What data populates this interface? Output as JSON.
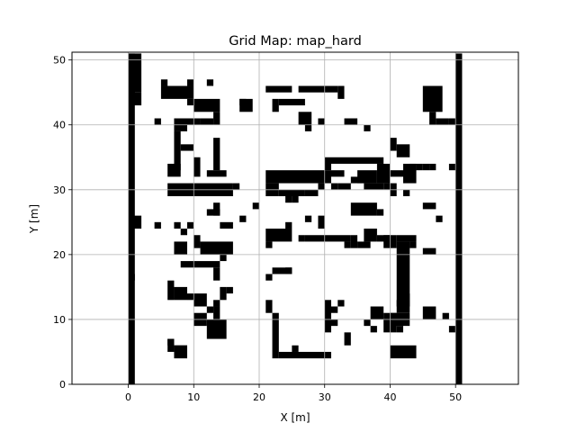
{
  "chart_data": {
    "type": "heatmap",
    "title": "Grid Map: map_hard",
    "xlabel": "X [m]",
    "ylabel": "Y [m]",
    "xlim": [
      -8.6,
      59.6
    ],
    "ylim": [
      0,
      51.2
    ],
    "xticks": [
      0,
      10,
      20,
      30,
      40,
      50
    ],
    "yticks": [
      0,
      10,
      20,
      30,
      40,
      50
    ],
    "grid": true,
    "cell_size": 1,
    "colors": {
      "occupied": "#000000",
      "free": "#ffffff",
      "grid": "#b0b0b0"
    },
    "occupied_cells": [
      [
        0,
        0,
        1,
        51
      ],
      [
        50,
        0,
        1,
        51
      ],
      [
        0,
        45,
        2,
        6
      ],
      [
        0,
        44,
        1,
        2
      ],
      [
        0,
        43,
        2,
        2
      ],
      [
        0,
        16,
        1,
        1
      ],
      [
        0,
        24,
        2,
        2
      ],
      [
        5,
        46,
        1,
        1
      ],
      [
        9,
        46,
        1,
        1
      ],
      [
        12,
        46,
        1,
        1
      ],
      [
        5,
        44,
        5,
        2
      ],
      [
        9,
        43,
        1,
        1
      ],
      [
        10,
        42,
        4,
        2
      ],
      [
        13,
        41,
        1,
        1
      ],
      [
        7,
        39,
        2,
        2
      ],
      [
        9,
        40,
        2,
        1
      ],
      [
        11,
        40,
        2,
        1
      ],
      [
        13,
        40,
        1,
        1
      ],
      [
        4,
        40,
        1,
        1
      ],
      [
        7,
        33,
        1,
        6
      ],
      [
        8,
        36,
        2,
        1
      ],
      [
        10,
        32,
        1,
        3
      ],
      [
        12,
        32,
        3,
        1
      ],
      [
        13,
        33,
        1,
        5
      ],
      [
        6,
        32,
        2,
        2
      ],
      [
        6,
        29,
        10,
        2
      ],
      [
        16,
        30,
        1,
        1
      ],
      [
        13,
        26,
        1,
        2
      ],
      [
        12,
        26,
        2,
        1
      ],
      [
        14,
        24,
        2,
        1
      ],
      [
        17,
        25,
        1,
        1
      ],
      [
        19,
        27,
        1,
        1
      ],
      [
        7,
        24,
        1,
        1
      ],
      [
        8,
        23,
        1,
        1
      ],
      [
        9,
        24,
        1,
        1
      ],
      [
        4,
        24,
        1,
        1
      ],
      [
        10,
        21,
        1,
        2
      ],
      [
        11,
        20,
        5,
        2
      ],
      [
        14,
        19,
        1,
        1
      ],
      [
        7,
        20,
        2,
        2
      ],
      [
        8,
        18,
        6,
        1
      ],
      [
        13,
        16,
        1,
        2
      ],
      [
        6,
        13,
        1,
        3
      ],
      [
        7,
        13,
        2,
        2
      ],
      [
        9,
        13,
        1,
        1
      ],
      [
        10,
        12,
        2,
        2
      ],
      [
        14,
        13,
        1,
        2
      ],
      [
        13,
        12,
        1,
        1
      ],
      [
        13,
        10,
        1,
        2
      ],
      [
        10,
        9,
        2,
        2
      ],
      [
        12,
        11,
        1,
        1
      ],
      [
        12,
        7,
        3,
        3
      ],
      [
        6,
        5,
        1,
        2
      ],
      [
        7,
        5,
        2,
        1
      ],
      [
        7,
        4,
        2,
        2
      ],
      [
        6,
        6,
        1,
        1
      ],
      [
        15,
        14,
        1,
        1
      ],
      [
        21,
        45,
        4,
        1
      ],
      [
        26,
        45,
        6,
        1
      ],
      [
        32,
        44,
        1,
        2
      ],
      [
        22,
        42,
        1,
        2
      ],
      [
        23,
        43,
        4,
        1
      ],
      [
        26,
        40,
        2,
        2
      ],
      [
        27,
        39,
        1,
        1
      ],
      [
        29,
        40,
        1,
        1
      ],
      [
        33,
        40,
        2,
        1
      ],
      [
        36,
        39,
        1,
        1
      ],
      [
        17,
        42,
        2,
        2
      ],
      [
        17,
        43,
        1,
        1
      ],
      [
        40,
        36,
        1,
        2
      ],
      [
        41,
        35,
        2,
        2
      ],
      [
        31,
        34,
        8,
        1
      ],
      [
        30,
        33,
        1,
        2
      ],
      [
        31,
        32,
        2,
        1
      ],
      [
        35,
        31,
        3,
        2
      ],
      [
        38,
        31,
        2,
        3
      ],
      [
        39,
        32,
        4,
        1
      ],
      [
        42,
        31,
        2,
        3
      ],
      [
        43,
        33,
        1,
        1
      ],
      [
        46,
        33,
        1,
        1
      ],
      [
        49,
        33,
        1,
        1
      ],
      [
        44,
        33,
        1,
        1
      ],
      [
        45,
        33,
        1,
        1
      ],
      [
        21,
        31,
        10,
        2
      ],
      [
        21,
        29,
        2,
        2
      ],
      [
        23,
        29,
        4,
        1
      ],
      [
        27,
        29,
        2,
        1
      ],
      [
        29,
        30,
        1,
        1
      ],
      [
        31,
        30,
        1,
        1
      ],
      [
        32,
        30,
        2,
        1
      ],
      [
        34,
        31,
        2,
        1
      ],
      [
        36,
        30,
        3,
        1
      ],
      [
        39,
        30,
        2,
        1
      ],
      [
        40,
        29,
        1,
        1
      ],
      [
        42,
        29,
        1,
        1
      ],
      [
        25,
        28,
        1,
        1
      ],
      [
        24,
        28,
        1,
        1
      ],
      [
        34,
        26,
        4,
        2
      ],
      [
        38,
        26,
        1,
        1
      ],
      [
        45,
        27,
        2,
        1
      ],
      [
        47,
        25,
        1,
        1
      ],
      [
        21,
        22,
        4,
        2
      ],
      [
        21,
        21,
        1,
        1
      ],
      [
        24,
        24,
        1,
        1
      ],
      [
        27,
        25,
        1,
        1
      ],
      [
        29,
        24,
        1,
        2
      ],
      [
        26,
        22,
        1,
        1
      ],
      [
        27,
        22,
        7,
        1
      ],
      [
        33,
        21,
        1,
        1
      ],
      [
        34,
        21,
        1,
        2
      ],
      [
        35,
        21,
        2,
        1
      ],
      [
        36,
        22,
        2,
        2
      ],
      [
        38,
        22,
        2,
        1
      ],
      [
        39,
        21,
        2,
        2
      ],
      [
        41,
        22,
        3,
        1
      ],
      [
        43,
        21,
        1,
        1
      ],
      [
        22,
        17,
        3,
        1
      ],
      [
        24,
        17,
        1,
        1
      ],
      [
        21,
        16,
        1,
        1
      ],
      [
        21,
        11,
        1,
        2
      ],
      [
        22,
        4,
        1,
        7
      ],
      [
        23,
        4,
        8,
        1
      ],
      [
        25,
        5,
        1,
        1
      ],
      [
        30,
        8,
        1,
        5
      ],
      [
        31,
        11,
        1,
        1
      ],
      [
        32,
        12,
        1,
        1
      ],
      [
        33,
        6,
        1,
        2
      ],
      [
        31,
        9,
        1,
        1
      ],
      [
        37,
        8,
        1,
        1
      ],
      [
        36,
        9,
        1,
        1
      ],
      [
        37,
        10,
        2,
        2
      ],
      [
        39,
        8,
        2,
        3
      ],
      [
        40,
        9,
        3,
        2
      ],
      [
        40,
        4,
        4,
        2
      ],
      [
        41,
        8,
        1,
        1
      ],
      [
        41,
        11,
        2,
        2
      ],
      [
        42,
        13,
        1,
        1
      ],
      [
        41,
        12,
        2,
        10
      ],
      [
        42,
        21,
        1,
        1
      ],
      [
        45,
        20,
        2,
        1
      ],
      [
        45,
        10,
        2,
        2
      ],
      [
        48,
        10,
        1,
        1
      ],
      [
        49,
        8,
        1,
        1
      ],
      [
        45,
        42,
        3,
        4
      ],
      [
        46,
        41,
        1,
        1
      ],
      [
        47,
        40,
        2,
        1
      ],
      [
        49,
        40,
        1,
        1
      ],
      [
        46,
        40,
        1,
        1
      ]
    ]
  }
}
